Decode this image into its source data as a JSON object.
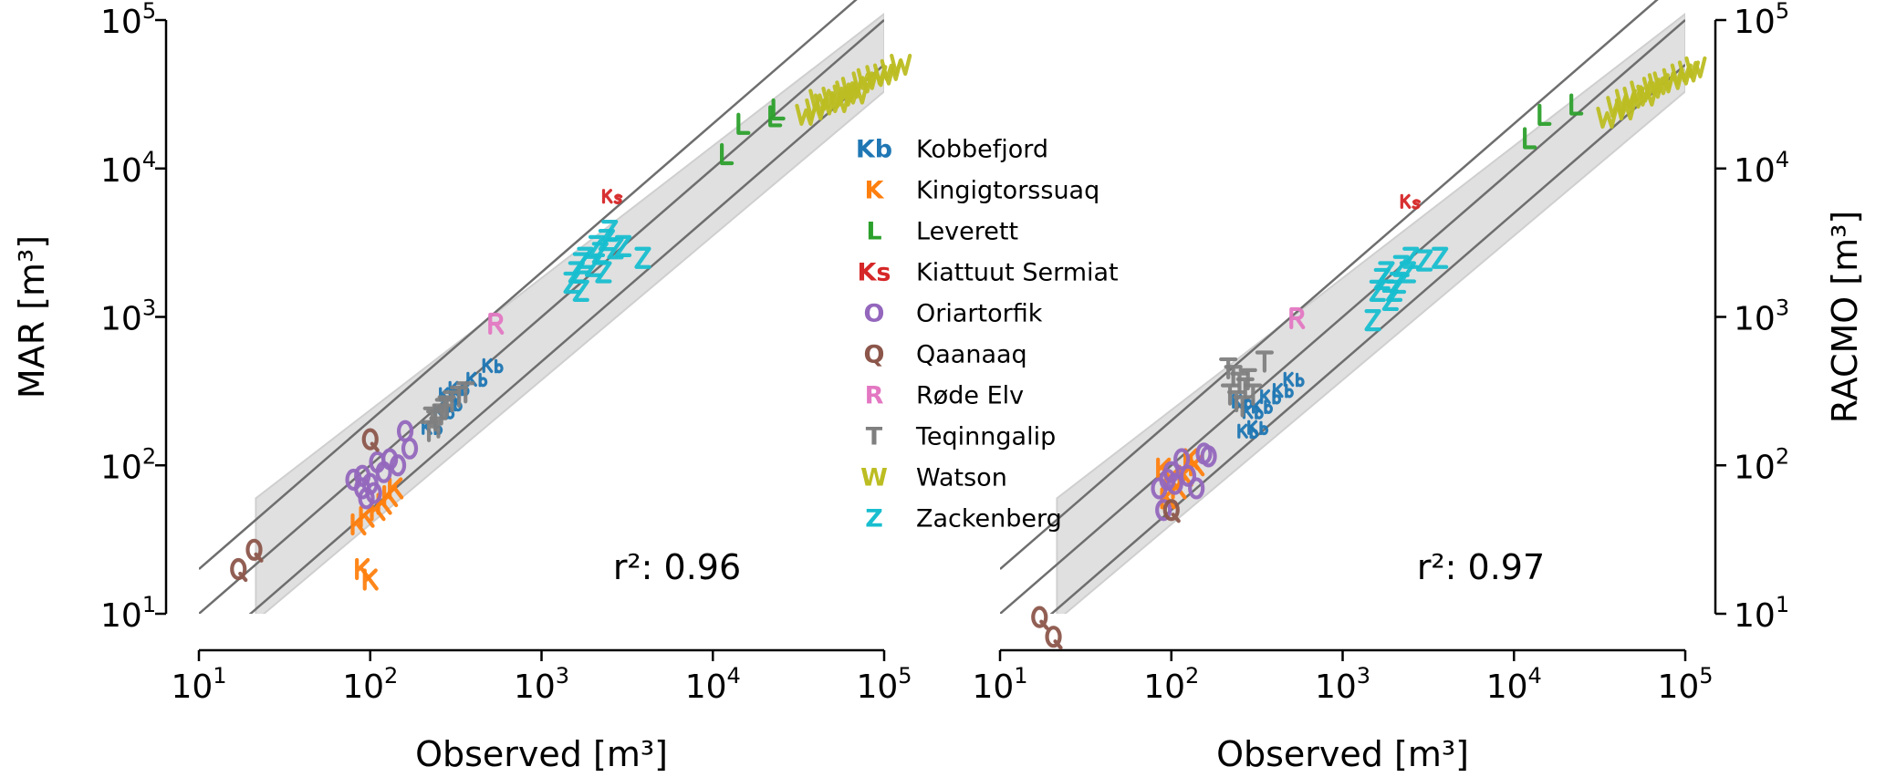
{
  "chart_data": [
    {
      "type": "scatter",
      "panel": "left",
      "xlabel": "Observed [m³]",
      "ylabel": "MAR [m³]",
      "xscale": "log",
      "yscale": "log",
      "xlim": [
        10,
        100000
      ],
      "ylim": [
        10,
        100000
      ],
      "tick_exponents": [
        "1",
        "2",
        "3",
        "4",
        "5"
      ],
      "annotation": "r²: 0.96",
      "reference_lines": [
        "1:1",
        "2:1",
        "1:2"
      ],
      "series": [
        {
          "name": "Kobbefjord",
          "marker": "Kb",
          "color": "#1f77b4",
          "points": [
            [
              520,
              470
            ],
            [
              420,
              380
            ],
            [
              330,
              330
            ],
            [
              290,
              300
            ],
            [
              270,
              230
            ],
            [
              230,
              180
            ],
            [
              300,
              260
            ]
          ]
        },
        {
          "name": "Kingigtorssuaq",
          "marker": "K",
          "color": "#ff7f0e",
          "points": [
            [
              85,
              40
            ],
            [
              95,
              45
            ],
            [
              110,
              50
            ],
            [
              140,
              70
            ],
            [
              90,
              20
            ],
            [
              100,
              17
            ],
            [
              120,
              55
            ],
            [
              130,
              62
            ]
          ]
        },
        {
          "name": "Leverett",
          "marker": "L",
          "color": "#2ca02c",
          "points": [
            [
              12000,
              12500
            ],
            [
              15000,
              20000
            ],
            [
              23000,
              22500
            ],
            [
              24000,
              25000
            ]
          ]
        },
        {
          "name": "Kiattuut Sermiat",
          "marker": "Ks",
          "color": "#d62728",
          "points": [
            [
              2600,
              6500
            ]
          ]
        },
        {
          "name": "Oriartorfik",
          "marker": "O",
          "color": "#9467bd",
          "points": [
            [
              80,
              80
            ],
            [
              90,
              70
            ],
            [
              95,
              60
            ],
            [
              100,
              75
            ],
            [
              110,
              105
            ],
            [
              120,
              90
            ],
            [
              130,
              110
            ],
            [
              145,
              100
            ],
            [
              160,
              170
            ],
            [
              170,
              130
            ],
            [
              90,
              85
            ],
            [
              105,
              65
            ]
          ]
        },
        {
          "name": "Qaanaaq",
          "marker": "Q",
          "color": "#8c564b",
          "points": [
            [
              100,
              150
            ],
            [
              21,
              27
            ],
            [
              17,
              20
            ]
          ]
        },
        {
          "name": "Røde Elv",
          "marker": "R",
          "color": "#e377c2",
          "points": [
            [
              540,
              900
            ]
          ]
        },
        {
          "name": "Teqinngalip",
          "marker": "T",
          "color": "#7f7f7f",
          "points": [
            [
              220,
              170
            ],
            [
              240,
              200
            ],
            [
              260,
              220
            ],
            [
              280,
              250
            ],
            [
              300,
              270
            ],
            [
              330,
              290
            ],
            [
              250,
              180
            ],
            [
              270,
              240
            ],
            [
              360,
              310
            ],
            [
              230,
              210
            ]
          ]
        },
        {
          "name": "Watson",
          "marker": "W",
          "color": "#bcbd22",
          "points": [
            [
              35000,
              23000
            ],
            [
              40000,
              25000
            ],
            [
              45000,
              27000
            ],
            [
              50000,
              30000
            ],
            [
              55000,
              28000
            ],
            [
              60000,
              33000
            ],
            [
              65000,
              35000
            ],
            [
              70000,
              32000
            ],
            [
              75000,
              38000
            ],
            [
              80000,
              40000
            ],
            [
              90000,
              42000
            ],
            [
              100000,
              43000
            ],
            [
              110000,
              46000
            ],
            [
              125000,
              50000
            ],
            [
              42000,
              29000
            ],
            [
              58000,
              31000
            ]
          ]
        },
        {
          "name": "Zackenberg",
          "marker": "Z",
          "color": "#17becf",
          "points": [
            [
              1500,
              1700
            ],
            [
              1600,
              2000
            ],
            [
              1700,
              2300
            ],
            [
              1800,
              2500
            ],
            [
              2000,
              2200
            ],
            [
              2100,
              3000
            ],
            [
              2200,
              2700
            ],
            [
              2400,
              3300
            ],
            [
              2500,
              3800
            ],
            [
              2700,
              2900
            ],
            [
              3000,
              3000
            ],
            [
              3900,
              2500
            ],
            [
              1700,
              1500
            ],
            [
              2300,
              2000
            ]
          ]
        }
      ]
    },
    {
      "type": "scatter",
      "panel": "right",
      "xlabel": "Observed [m³]",
      "ylabel": "RACMO [m³]",
      "xscale": "log",
      "yscale": "log",
      "xlim": [
        10,
        100000
      ],
      "ylim": [
        10,
        100000
      ],
      "tick_exponents": [
        "1",
        "2",
        "3",
        "4",
        "5"
      ],
      "annotation": "r²: 0.97",
      "reference_lines": [
        "1:1",
        "2:1",
        "1:2"
      ],
      "series": [
        {
          "name": "Kobbefjord",
          "marker": "Kb",
          "color": "#1f77b4",
          "points": [
            [
              520,
              380
            ],
            [
              450,
              320
            ],
            [
              380,
              290
            ],
            [
              340,
              250
            ],
            [
              300,
              230
            ],
            [
              280,
              170
            ],
            [
              320,
              180
            ],
            [
              260,
              270
            ]
          ]
        },
        {
          "name": "Kingigtorssuaq",
          "marker": "K",
          "color": "#ff7f0e",
          "points": [
            [
              90,
              95
            ],
            [
              100,
              80
            ],
            [
              110,
              70
            ],
            [
              130,
              110
            ],
            [
              140,
              100
            ],
            [
              95,
              60
            ],
            [
              120,
              85
            ]
          ]
        },
        {
          "name": "Leverett",
          "marker": "L",
          "color": "#2ca02c",
          "points": [
            [
              12300,
              16000
            ],
            [
              15000,
              23000
            ],
            [
              23000,
              27000
            ]
          ]
        },
        {
          "name": "Kiattuut Sermiat",
          "marker": "Ks",
          "color": "#d62728",
          "points": [
            [
              2500,
              6000
            ]
          ]
        },
        {
          "name": "Oriartorfik",
          "marker": "O",
          "color": "#9467bd",
          "points": [
            [
              85,
              70
            ],
            [
              90,
              50
            ],
            [
              95,
              80
            ],
            [
              105,
              75
            ],
            [
              115,
              110
            ],
            [
              125,
              85
            ],
            [
              140,
              70
            ],
            [
              155,
              120
            ],
            [
              165,
              115
            ],
            [
              100,
              90
            ]
          ]
        },
        {
          "name": "Qaanaaq",
          "marker": "Q",
          "color": "#8c564b",
          "points": [
            [
              100,
              50
            ],
            [
              17,
              9.5
            ],
            [
              20.5,
              7
            ]
          ]
        },
        {
          "name": "Røde Elv",
          "marker": "R",
          "color": "#e377c2",
          "points": [
            [
              540,
              980
            ]
          ]
        },
        {
          "name": "Teqinngalip",
          "marker": "T",
          "color": "#7f7f7f",
          "points": [
            [
              215,
              450
            ],
            [
              230,
              400
            ],
            [
              250,
              360
            ],
            [
              270,
              330
            ],
            [
              300,
              300
            ],
            [
              240,
              270
            ],
            [
              260,
              250
            ],
            [
              350,
              500
            ],
            [
              220,
              300
            ],
            [
              280,
              380
            ]
          ]
        },
        {
          "name": "Watson",
          "marker": "W",
          "color": "#bcbd22",
          "points": [
            [
              35000,
              22000
            ],
            [
              40000,
              26000
            ],
            [
              45000,
              29000
            ],
            [
              50000,
              30000
            ],
            [
              55000,
              33000
            ],
            [
              60000,
              31000
            ],
            [
              65000,
              35000
            ],
            [
              70000,
              37000
            ],
            [
              75000,
              38000
            ],
            [
              85000,
              40000
            ],
            [
              95000,
              43000
            ],
            [
              105000,
              45000
            ],
            [
              115000,
              48000
            ],
            [
              45000,
              25000
            ]
          ]
        },
        {
          "name": "Zackenberg",
          "marker": "Z",
          "color": "#17becf",
          "points": [
            [
              1500,
              950
            ],
            [
              1600,
              1500
            ],
            [
              1700,
              1800
            ],
            [
              1800,
              2000
            ],
            [
              2000,
              1500
            ],
            [
              2100,
              1700
            ],
            [
              2200,
              2200
            ],
            [
              2400,
              2000
            ],
            [
              2500,
              2500
            ],
            [
              3000,
              2400
            ],
            [
              3700,
              2500
            ],
            [
              1900,
              1300
            ]
          ]
        }
      ]
    }
  ],
  "legend": {
    "placement": "center",
    "entries": [
      {
        "marker": "Kb",
        "label": "Kobbefjord",
        "color": "#1f77b4"
      },
      {
        "marker": "K",
        "label": "Kingigtorssuaq",
        "color": "#ff7f0e"
      },
      {
        "marker": "L",
        "label": "Leverett",
        "color": "#2ca02c"
      },
      {
        "marker": "Ks",
        "label": "Kiattuut Sermiat",
        "color": "#d62728"
      },
      {
        "marker": "O",
        "label": "Oriartorfik",
        "color": "#9467bd"
      },
      {
        "marker": "Q",
        "label": "Qaanaaq",
        "color": "#8c564b"
      },
      {
        "marker": "R",
        "label": "Røde Elv",
        "color": "#e377c2"
      },
      {
        "marker": "T",
        "label": "Teqinngalip",
        "color": "#7f7f7f"
      },
      {
        "marker": "W",
        "label": "Watson",
        "color": "#bcbd22"
      },
      {
        "marker": "Z",
        "label": "Zackenberg",
        "color": "#17becf"
      }
    ]
  },
  "tick_base": "10",
  "colors": {
    "band": "#e0e0e0",
    "line": "#6e6e6e",
    "axis": "#000000"
  }
}
